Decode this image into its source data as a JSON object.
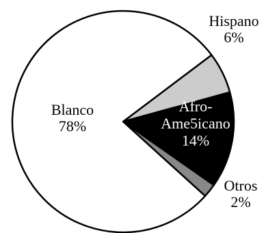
{
  "chart_data": {
    "type": "pie",
    "title": "",
    "start_angle_deg": 37,
    "direction": "clockwise",
    "slices": [
      {
        "label": "Hispano",
        "pct_label": "6%",
        "value": 6,
        "color": "#cccccc",
        "text_color": "#000000",
        "label_placement": "outside"
      },
      {
        "label": "Afro-\nAme5icano",
        "pct_label": "14%",
        "value": 14,
        "color": "#000000",
        "text_color": "#ffffff",
        "label_placement": "inside"
      },
      {
        "label": "Otros",
        "pct_label": "2%",
        "value": 2,
        "color": "#888888",
        "text_color": "#000000",
        "label_placement": "outside"
      },
      {
        "label": "Blanco",
        "pct_label": "78%",
        "value": 78,
        "color": "#ffffff",
        "text_color": "#000000",
        "label_placement": "inside"
      }
    ]
  }
}
